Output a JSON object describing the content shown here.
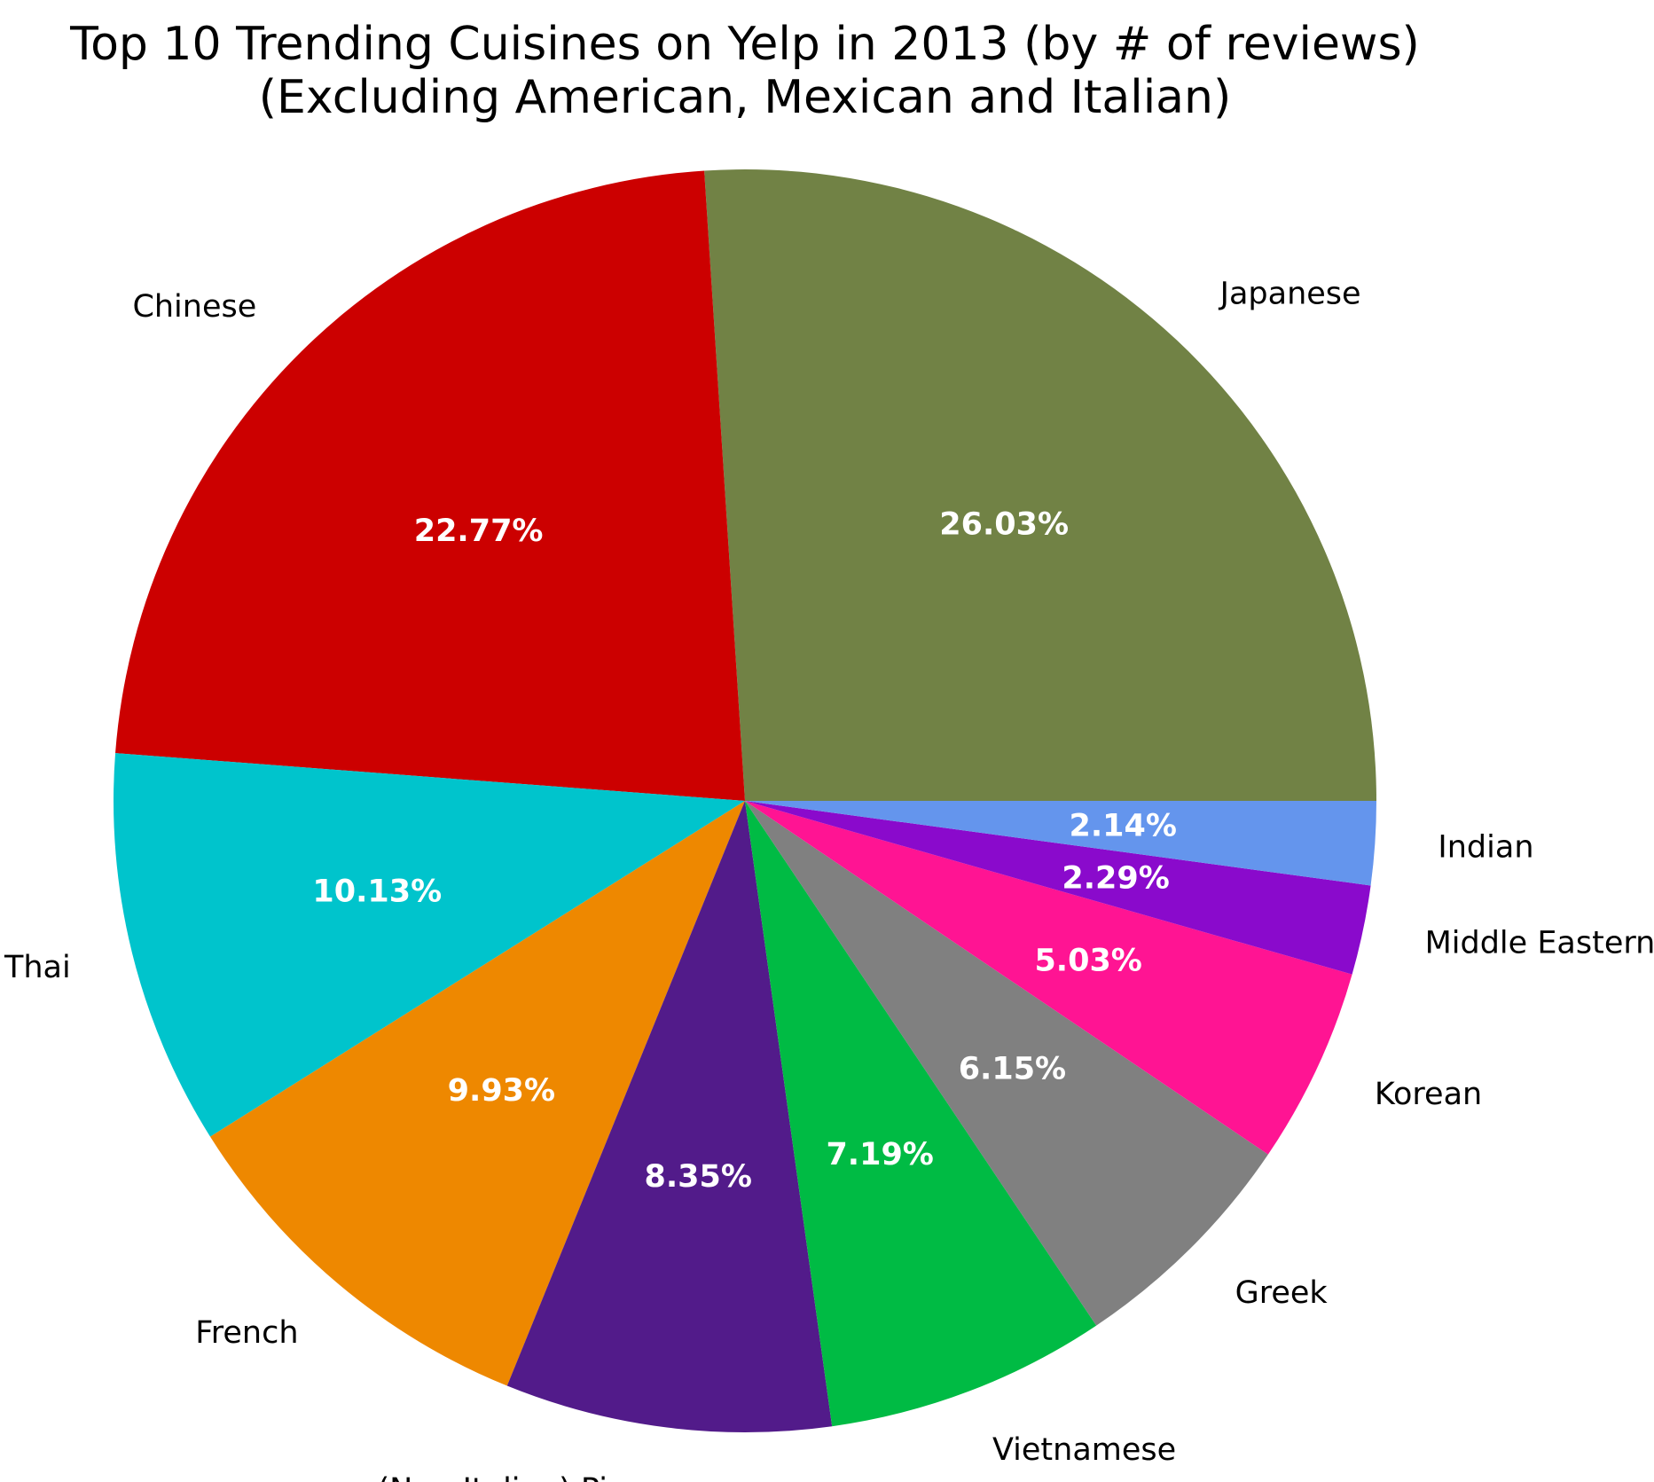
{
  "chart_data": {
    "type": "pie",
    "title_lines": [
      "Top 10 Trending Cuisines on Yelp in 2013 (by # of reviews)",
      "(Excluding American, Mexican and Italian)"
    ],
    "slices": [
      {
        "label": "Japanese",
        "value": 26.03,
        "pct_text": "26.03%",
        "color": "#718245"
      },
      {
        "label": "Chinese",
        "value": 22.77,
        "pct_text": "22.77%",
        "color": "#cc0000"
      },
      {
        "label": "Thai",
        "value": 10.13,
        "pct_text": "10.13%",
        "color": "#00c4cc"
      },
      {
        "label": "French",
        "value": 9.93,
        "pct_text": "9.93%",
        "color": "#ee8800"
      },
      {
        "label": "(Non-Italian) Pizza",
        "value": 8.35,
        "pct_text": "8.35%",
        "color": "#521b8a"
      },
      {
        "label": "Vietnamese",
        "value": 7.19,
        "pct_text": "7.19%",
        "color": "#00bb44"
      },
      {
        "label": "Greek",
        "value": 6.15,
        "pct_text": "6.15%",
        "color": "#808080"
      },
      {
        "label": "Korean",
        "value": 5.03,
        "pct_text": "5.03%",
        "color": "#ff1493"
      },
      {
        "label": "Middle Eastern",
        "value": 2.29,
        "pct_text": "2.29%",
        "color": "#8a0acc"
      },
      {
        "label": "Indian",
        "value": 2.14,
        "pct_text": "2.14%",
        "color": "#6495ed"
      }
    ],
    "start_angle_deg": 0,
    "direction": "counterclockwise",
    "legend": "none"
  }
}
